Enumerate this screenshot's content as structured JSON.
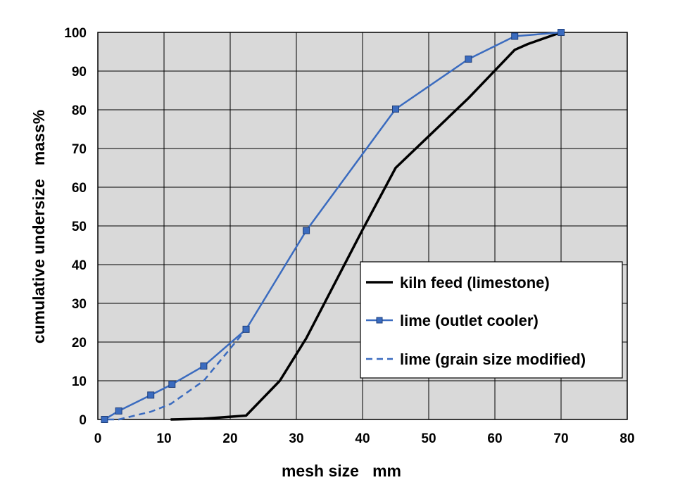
{
  "chart_data": {
    "type": "line",
    "title": "",
    "xlabel": "mesh size   mm",
    "ylabel": "cumulative undersize   mass%",
    "xlim": [
      0,
      80
    ],
    "ylim": [
      0,
      100
    ],
    "xticks": [
      "0",
      "10",
      "20",
      "30",
      "40",
      "50",
      "60",
      "70",
      "80"
    ],
    "yticks": [
      "0",
      "10",
      "20",
      "30",
      "40",
      "50",
      "60",
      "70",
      "80",
      "90",
      "100"
    ],
    "grid": true,
    "plot_background": "#d9d9d9",
    "legend_position": "lower-right",
    "series": [
      {
        "name": "kiln feed (limestone)",
        "color": "#000000",
        "style": "solid",
        "marker": "none",
        "x": [
          11,
          16,
          22.4,
          27.5,
          31.5,
          40,
          45,
          56,
          63,
          65,
          70
        ],
        "y": [
          0,
          0.2,
          1,
          10,
          21,
          49,
          65,
          83,
          95.5,
          97,
          100
        ]
      },
      {
        "name": "lime (outlet cooler)",
        "color": "#3a6bbf",
        "style": "solid",
        "marker": "square",
        "x": [
          1,
          3.15,
          8,
          11.2,
          16,
          22.4,
          31.5,
          45,
          56,
          63,
          70
        ],
        "y": [
          0,
          2.2,
          6.3,
          9.1,
          13.8,
          23.3,
          48.8,
          80.2,
          93.1,
          99,
          100
        ]
      },
      {
        "name": "lime (grain size modified)",
        "color": "#3a6bbf",
        "style": "dashed",
        "marker": "none",
        "x": [
          1.5,
          3.15,
          8,
          11,
          16,
          22.4
        ],
        "y": [
          0,
          0,
          2,
          4,
          10,
          23.3
        ]
      }
    ]
  }
}
